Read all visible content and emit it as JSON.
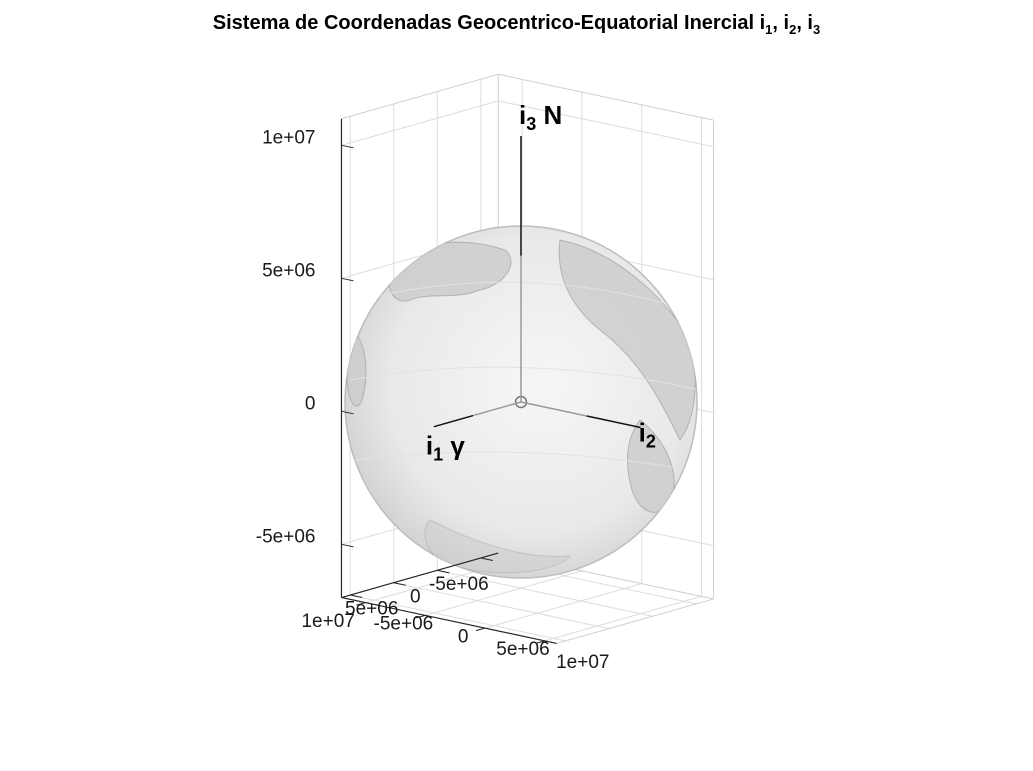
{
  "chart_data": {
    "type": "3d-surface",
    "title": {
      "text": "Sistema de Coordenadas Geocentrico-Equatorial Inercial i",
      "sub1": "1",
      "sep1": ", i",
      "sub2": "2",
      "sep2": ", i",
      "sub3": "3"
    },
    "grid": true,
    "box": "open",
    "surface": {
      "name": "earth",
      "radius": 6378000,
      "shading": "grayscale"
    },
    "axes": {
      "x": {
        "range": [
          -7000000,
          11000000
        ],
        "ticks": [
          -5000000,
          0,
          5000000,
          10000000
        ],
        "tick_labels": [
          "-5e+06",
          "0",
          "5e+06",
          "1e+07"
        ]
      },
      "y": {
        "range": [
          -7000000,
          11000000
        ],
        "ticks": [
          -5000000,
          0,
          5000000,
          10000000
        ],
        "tick_labels": [
          "-5e+06",
          "0",
          "5e+06",
          "1e+07"
        ]
      },
      "z": {
        "range": [
          -7000000,
          11000000
        ],
        "ticks": [
          -5000000,
          0,
          5000000,
          10000000
        ],
        "tick_labels": [
          "-5e+06",
          "0",
          "5e+06",
          "1e+07"
        ]
      }
    },
    "vectors": [
      {
        "id": "i1",
        "label": "i",
        "sub": "1",
        "suffix": " γ",
        "to": [
          10000000,
          0,
          0
        ]
      },
      {
        "id": "i2",
        "label": "i",
        "sub": "2",
        "suffix": "",
        "to": [
          0,
          10000000,
          0
        ]
      },
      {
        "id": "i3",
        "label": "i",
        "sub": "3",
        "suffix": " N",
        "to": [
          0,
          0,
          10000000
        ]
      }
    ]
  }
}
